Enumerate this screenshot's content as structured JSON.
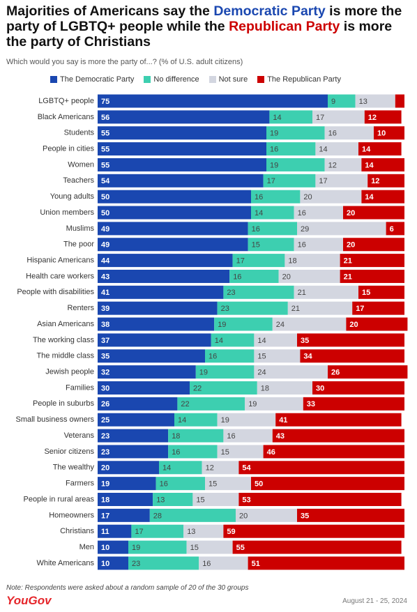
{
  "chart_data": {
    "type": "stacked-bar-horizontal",
    "title_parts": [
      {
        "text": "Majorities of Americans say the ",
        "color": "#111111"
      },
      {
        "text": "Democratic Party",
        "color": "#1a47b0"
      },
      {
        "text": " is more the party of LGBTQ+ people while the ",
        "color": "#111111"
      },
      {
        "text": "Republican Party",
        "color": "#cc0000"
      },
      {
        "text": " is more the party of Christians",
        "color": "#111111"
      }
    ],
    "subtitle": "Which would you say is more the party of...? (% of U.S. adult citizens)",
    "categories": [
      "LGBTQ+ people",
      "Black Americans",
      "Students",
      "People in cities",
      "Women",
      "Teachers",
      "Young adults",
      "Union members",
      "Muslims",
      "The poor",
      "Hispanic Americans",
      "Health care workers",
      "People with disabilities",
      "Renters",
      "Asian Americans",
      "The working class",
      "The middle class",
      "Jewish people",
      "Families",
      "People in suburbs",
      "Small business owners",
      "Veterans",
      "Senior citizens",
      "The wealthy",
      "Farmers",
      "People in rural areas",
      "Homeowners",
      "Christians",
      "Men",
      "White Americans"
    ],
    "series": [
      {
        "name": "The Democratic Party",
        "color": "#1a47b0",
        "label_color": "#ffffff",
        "values": [
          75,
          56,
          55,
          55,
          55,
          54,
          50,
          50,
          49,
          49,
          44,
          43,
          41,
          39,
          38,
          37,
          35,
          32,
          30,
          26,
          25,
          23,
          23,
          20,
          19,
          18,
          17,
          11,
          10,
          10
        ]
      },
      {
        "name": "No difference",
        "color": "#3dcfb0",
        "label_color": "#444444",
        "values": [
          9,
          14,
          19,
          16,
          19,
          17,
          16,
          14,
          16,
          15,
          17,
          16,
          23,
          23,
          19,
          14,
          16,
          19,
          22,
          22,
          14,
          18,
          16,
          14,
          16,
          13,
          28,
          17,
          19,
          23
        ]
      },
      {
        "name": "Not sure",
        "color": "#d3d6e0",
        "label_color": "#444444",
        "values": [
          13,
          17,
          16,
          14,
          12,
          17,
          20,
          16,
          29,
          16,
          18,
          20,
          21,
          21,
          24,
          14,
          15,
          24,
          18,
          19,
          19,
          16,
          15,
          12,
          15,
          15,
          20,
          13,
          15,
          16
        ]
      },
      {
        "name": "The Republican Party",
        "color": "#cc0000",
        "label_color": "#ffffff",
        "values": [
          3,
          12,
          10,
          14,
          14,
          12,
          14,
          20,
          6,
          20,
          21,
          21,
          15,
          17,
          20,
          35,
          34,
          26,
          30,
          33,
          41,
          43,
          46,
          54,
          50,
          53,
          35,
          59,
          55,
          51
        ]
      }
    ],
    "xlim": [
      0,
      100
    ],
    "note": "Note: Respondents were asked about a random sample of 20 of the 30 groups",
    "source": "YouGov",
    "date": "August 21 - 25, 2024"
  }
}
